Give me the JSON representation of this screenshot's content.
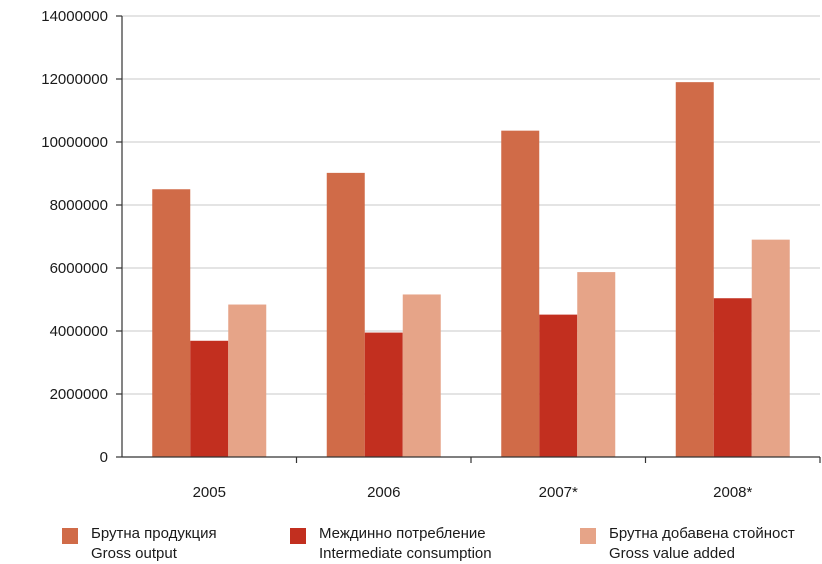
{
  "chart_data": {
    "type": "bar",
    "categories": [
      "2005",
      "2006",
      "2007*",
      "2008*"
    ],
    "series": [
      {
        "name": "Брутна продукция",
        "name_en": "Gross output",
        "color": "#d06b48",
        "values": [
          8500000,
          9020000,
          10360000,
          11900000
        ]
      },
      {
        "name": "Междинно потребление",
        "name_en": "Intermediate consumption",
        "color": "#c22f1f",
        "values": [
          3690000,
          3950000,
          4520000,
          5040000
        ]
      },
      {
        "name": "Брутна добавена стойност",
        "name_en": "Gross value added",
        "color": "#e6a488",
        "values": [
          4840000,
          5160000,
          5870000,
          6900000
        ]
      }
    ],
    "ylim": [
      0,
      14000000
    ],
    "yticks": [
      "0",
      "2000000",
      "4000000",
      "6000000",
      "8000000",
      "10000000",
      "12000000",
      "14000000"
    ],
    "grid": true,
    "legend_position": "bottom"
  }
}
